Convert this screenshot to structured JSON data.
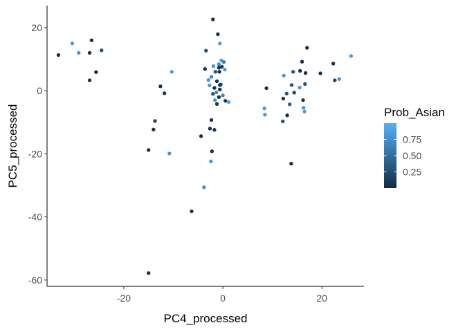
{
  "chart_data": {
    "type": "scatter",
    "title": "",
    "xlabel": "PC4_processed",
    "ylabel": "PC5_processed",
    "xlim": [
      -35.5,
      28.5
    ],
    "ylim": [
      -62,
      27
    ],
    "xticks": [
      -20,
      0,
      20
    ],
    "yticks": [
      -60,
      -40,
      -20,
      0,
      20
    ],
    "xtick_labels": [
      "-20",
      "0",
      "20"
    ],
    "ytick_labels": [
      "-60",
      "-40",
      "-20",
      "0",
      "20"
    ],
    "grid": false,
    "legend": {
      "title": "Prob_Asian",
      "placement": "right",
      "low_color": "#132b43",
      "high_color": "#56b1f7",
      "range": [
        0,
        1
      ],
      "breaks": [
        0.25,
        0.5,
        0.75
      ],
      "break_labels": [
        "0.25",
        "0.50",
        "0.75"
      ]
    },
    "points": [
      {
        "x": -33.2,
        "y": 11.3,
        "c": 0.05
      },
      {
        "x": -30.4,
        "y": 15.0,
        "c": 0.85
      },
      {
        "x": -29.1,
        "y": 12.0,
        "c": 0.8
      },
      {
        "x": -26.5,
        "y": 16.0,
        "c": 0.05
      },
      {
        "x": -26.9,
        "y": 12.0,
        "c": 0.05
      },
      {
        "x": -24.5,
        "y": 12.8,
        "c": 0.3
      },
      {
        "x": -25.6,
        "y": 5.9,
        "c": 0.05
      },
      {
        "x": -26.9,
        "y": 3.3,
        "c": 0.05
      },
      {
        "x": -12.6,
        "y": 1.4,
        "c": 0.05
      },
      {
        "x": -11.8,
        "y": -0.8,
        "c": 0.1
      },
      {
        "x": -13.7,
        "y": -9.6,
        "c": 0.2
      },
      {
        "x": -14.0,
        "y": -12.3,
        "c": 0.05
      },
      {
        "x": -10.3,
        "y": 6.0,
        "c": 0.85
      },
      {
        "x": -15.0,
        "y": -18.8,
        "c": 0.05
      },
      {
        "x": -10.8,
        "y": -19.9,
        "c": 0.8
      },
      {
        "x": -15.0,
        "y": -57.8,
        "c": 0.05
      },
      {
        "x": -6.3,
        "y": -38.2,
        "c": 0.05
      },
      {
        "x": -3.8,
        "y": -30.6,
        "c": 0.75
      },
      {
        "x": -2.4,
        "y": -22.4,
        "c": 0.8
      },
      {
        "x": -2.2,
        "y": -19.2,
        "c": 0.05
      },
      {
        "x": -4.4,
        "y": -14.4,
        "c": 0.05
      },
      {
        "x": -2.6,
        "y": -12.0,
        "c": 0.05
      },
      {
        "x": -1.7,
        "y": -12.4,
        "c": 0.05
      },
      {
        "x": -2.3,
        "y": -9.3,
        "c": 0.05
      },
      {
        "x": -2.0,
        "y": 22.6,
        "c": 0.05
      },
      {
        "x": -1.0,
        "y": 17.9,
        "c": 0.05
      },
      {
        "x": -3.4,
        "y": 12.7,
        "c": 0.3
      },
      {
        "x": -0.6,
        "y": 15.0,
        "c": 0.85
      },
      {
        "x": -0.3,
        "y": 9.6,
        "c": 0.85
      },
      {
        "x": 0.2,
        "y": 9.1,
        "c": 0.6
      },
      {
        "x": -0.8,
        "y": 8.4,
        "c": 0.7
      },
      {
        "x": -1.9,
        "y": 7.8,
        "c": 0.8
      },
      {
        "x": -0.8,
        "y": 7.3,
        "c": 0.05
      },
      {
        "x": -0.2,
        "y": 7.6,
        "c": 0.1
      },
      {
        "x": 0.4,
        "y": 6.7,
        "c": 0.85
      },
      {
        "x": -0.7,
        "y": 6.0,
        "c": 0.05
      },
      {
        "x": -1.5,
        "y": 6.0,
        "c": 0.3
      },
      {
        "x": -3.6,
        "y": 6.9,
        "c": 0.05
      },
      {
        "x": -2.3,
        "y": 4.4,
        "c": 0.7
      },
      {
        "x": -2.9,
        "y": 3.4,
        "c": 0.8
      },
      {
        "x": -1.2,
        "y": 3.0,
        "c": 0.05
      },
      {
        "x": -0.4,
        "y": 2.0,
        "c": 0.4
      },
      {
        "x": -2.7,
        "y": 1.7,
        "c": 0.8
      },
      {
        "x": -1.7,
        "y": 0.9,
        "c": 0.05
      },
      {
        "x": -0.6,
        "y": 0.4,
        "c": 0.05
      },
      {
        "x": -1.3,
        "y": -0.5,
        "c": 0.7
      },
      {
        "x": 0.0,
        "y": -1.5,
        "c": 0.7
      },
      {
        "x": -0.8,
        "y": -2.0,
        "c": 0.05
      },
      {
        "x": -1.6,
        "y": -3.0,
        "c": 0.8
      },
      {
        "x": 0.5,
        "y": -3.2,
        "c": 0.05
      },
      {
        "x": 1.2,
        "y": -3.6,
        "c": 0.85
      },
      {
        "x": -1.2,
        "y": -4.2,
        "c": 0.05
      },
      {
        "x": -0.6,
        "y": 1.8,
        "c": 0.05
      },
      {
        "x": -2.0,
        "y": -1.0,
        "c": 0.3
      },
      {
        "x": 8.8,
        "y": 0.8,
        "c": 0.05
      },
      {
        "x": 8.4,
        "y": -5.6,
        "c": 0.85
      },
      {
        "x": 8.5,
        "y": -7.6,
        "c": 0.8
      },
      {
        "x": 12.3,
        "y": 4.8,
        "c": 0.8
      },
      {
        "x": 14.2,
        "y": 6.0,
        "c": 0.3
      },
      {
        "x": 15.6,
        "y": 6.3,
        "c": 0.05
      },
      {
        "x": 16.0,
        "y": 9.2,
        "c": 0.05
      },
      {
        "x": 17.0,
        "y": 13.6,
        "c": 0.05
      },
      {
        "x": 16.7,
        "y": 5.6,
        "c": 0.05
      },
      {
        "x": 19.7,
        "y": 5.5,
        "c": 0.05
      },
      {
        "x": 22.3,
        "y": 8.6,
        "c": 0.05
      },
      {
        "x": 22.6,
        "y": 3.3,
        "c": 0.2
      },
      {
        "x": 23.5,
        "y": 3.7,
        "c": 0.8
      },
      {
        "x": 25.9,
        "y": 11.0,
        "c": 0.85
      },
      {
        "x": 12.2,
        "y": -2.5,
        "c": 0.05
      },
      {
        "x": 12.9,
        "y": -0.9,
        "c": 0.3
      },
      {
        "x": 14.4,
        "y": -0.6,
        "c": 0.2
      },
      {
        "x": 13.9,
        "y": 1.8,
        "c": 0.3
      },
      {
        "x": 15.5,
        "y": 1.0,
        "c": 0.8
      },
      {
        "x": 16.6,
        "y": 2.1,
        "c": 0.3
      },
      {
        "x": 16.2,
        "y": -3.0,
        "c": 0.05
      },
      {
        "x": 16.3,
        "y": -5.4,
        "c": 0.8
      },
      {
        "x": 16.5,
        "y": -6.6,
        "c": 0.85
      },
      {
        "x": 13.5,
        "y": -4.3,
        "c": 0.4
      },
      {
        "x": 13.0,
        "y": -7.8,
        "c": 0.05
      },
      {
        "x": 12.1,
        "y": -9.7,
        "c": 0.3
      },
      {
        "x": 13.8,
        "y": -23.1,
        "c": 0.05
      }
    ]
  }
}
